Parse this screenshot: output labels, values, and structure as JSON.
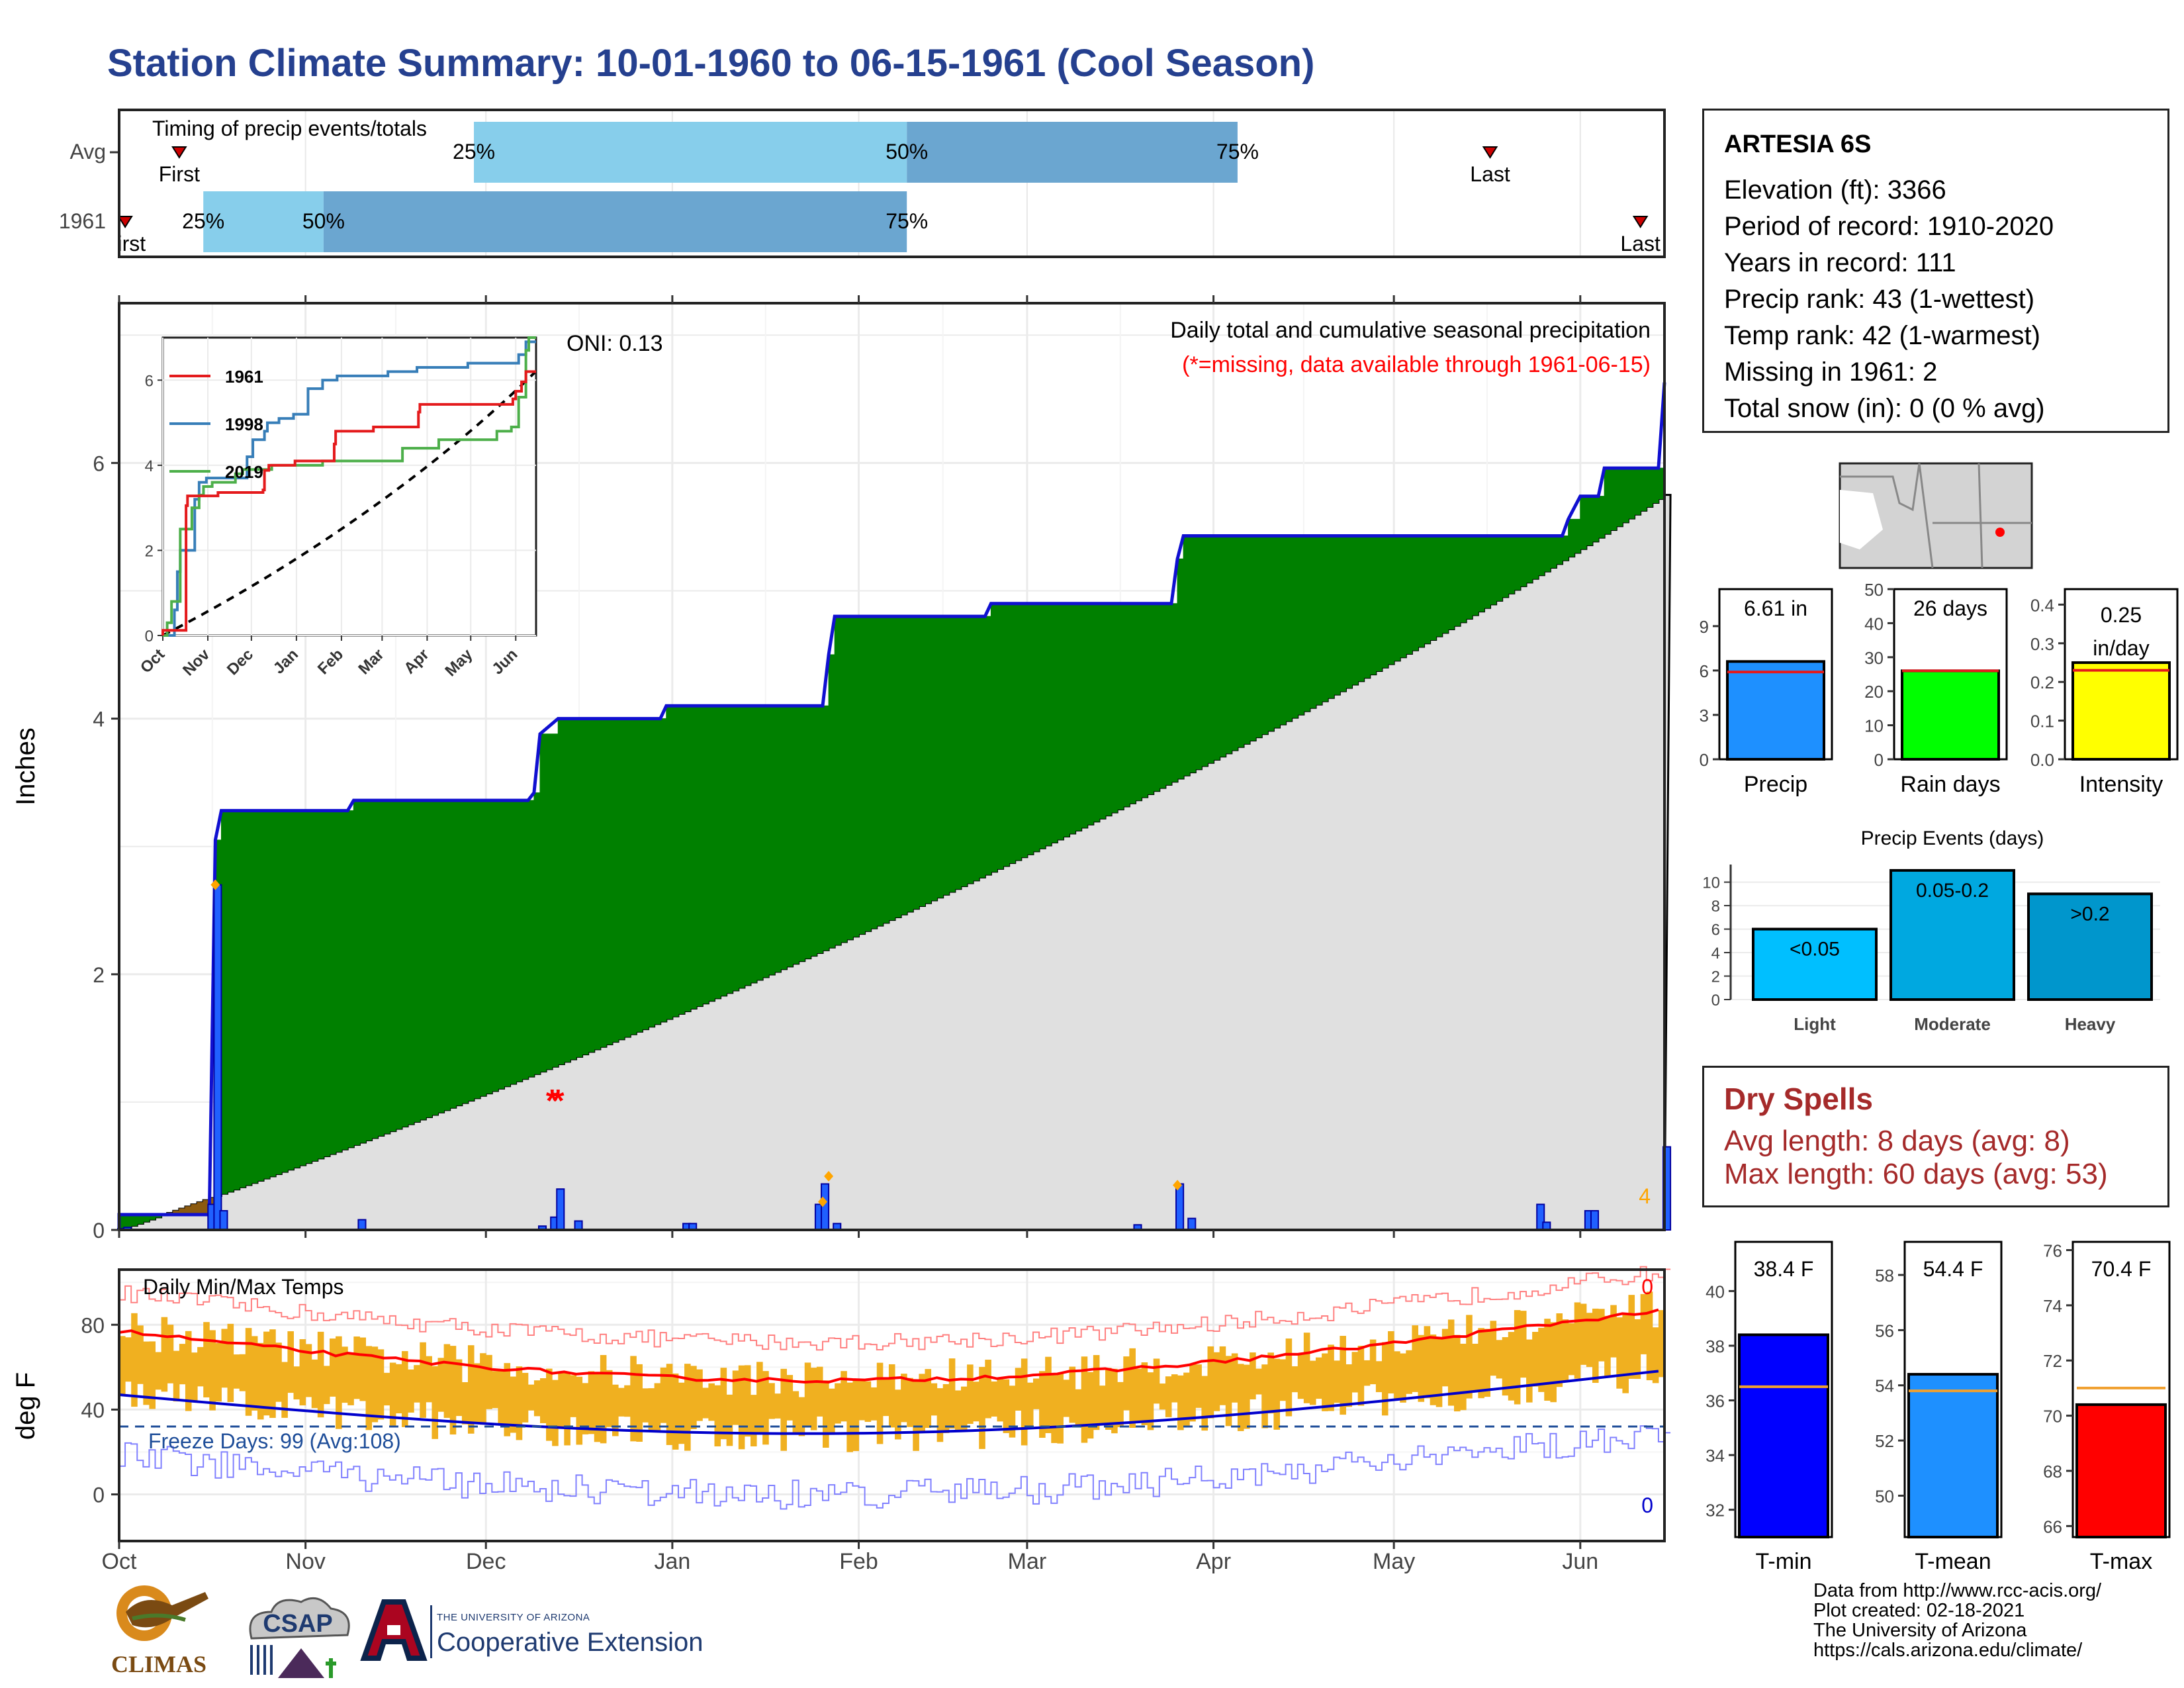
{
  "title": "Station Climate Summary: 10-01-1960 to 06-15-1961 (Cool Season)",
  "timing": {
    "title": "Timing of precip events/totals",
    "rows": [
      {
        "label": "Avg",
        "p25": "25%",
        "p50": "50%",
        "p75": "75%",
        "first": "First",
        "last": "Last"
      },
      {
        "label": "1961",
        "p25": "25%",
        "p50": "50%",
        "p75": "75%",
        "first": "First",
        "last": "Last"
      }
    ]
  },
  "main_panel": {
    "ylabel": "Inches",
    "oni": "ONI: 0.13",
    "caption": "Daily total and cumulative seasonal precipitation",
    "missing_note": "(*=missing, data available through 1961-06-15)",
    "missing_count": "4",
    "colors": {
      "observed": "#008000",
      "normal": "#e0e0e0",
      "outline": "#1010d0",
      "deficit": "#8b5a10",
      "bars": "#2060ff",
      "missing": "#ff0000",
      "flag": "#ffa500"
    }
  },
  "inset": {
    "legend": [
      "1961",
      "1998",
      "2019"
    ],
    "colors": [
      "#e41a1c",
      "#377eb8",
      "#4daf4a"
    ],
    "x_ticks": [
      "Oct",
      "Nov",
      "Dec",
      "Jan",
      "Feb",
      "Mar",
      "Apr",
      "May",
      "Jun"
    ],
    "y_ticks": [
      "0",
      "2",
      "4",
      "6"
    ]
  },
  "temp_panel": {
    "ylabel": "deg F",
    "title": "Daily Min/Max Temps",
    "freeze": "Freeze Days: 99 (Avg:108)",
    "count_top": "0",
    "count_bottom": "0",
    "y_ticks": [
      "0",
      "40",
      "80"
    ]
  },
  "x_ticks": [
    "Oct",
    "Nov",
    "Dec",
    "Jan",
    "Feb",
    "Mar",
    "Apr",
    "May",
    "Jun"
  ],
  "station": {
    "name": "ARTESIA 6S",
    "rows": [
      "Elevation (ft): 3366",
      "Period of record: 1910-2020",
      "Years in record: 111",
      "Precip rank: 43 (1-wettest)",
      "Temp rank: 42 (1-warmest)",
      "Missing in 1961: 2",
      "Total snow (in): 0 (0 % avg)"
    ]
  },
  "precip_bars": [
    {
      "label": "Precip",
      "value_text": "6.61 in",
      "value": 6.61,
      "avg": 5.9,
      "ymax": 11.5,
      "ticks": [
        "0",
        "3",
        "6",
        "9"
      ],
      "color": "#1e90ff"
    },
    {
      "label": "Rain days",
      "value_text": "26 days",
      "value": 26,
      "avg": 26,
      "ymax": 50,
      "ticks": [
        "0",
        "10",
        "20",
        "30",
        "40",
        "50"
      ],
      "color": "#00ff00"
    },
    {
      "label": "Intensity",
      "value_text": "0.25 in/day",
      "value": 0.25,
      "avg": 0.23,
      "ymax": 0.44,
      "ticks": [
        "0.0",
        "0.1",
        "0.2",
        "0.3",
        "0.4"
      ],
      "color": "#ffff00"
    }
  ],
  "events": {
    "title": "Precip Events (days)",
    "ticks": [
      "0",
      "2",
      "4",
      "6",
      "8",
      "10"
    ],
    "bars": [
      {
        "label": "Light",
        "text": "<0.05",
        "value": 6,
        "color": "#00bfff"
      },
      {
        "label": "Moderate",
        "text": "0.05-0.2",
        "value": 11,
        "color": "#00a8e0"
      },
      {
        "label": "Heavy",
        "text": ">0.2",
        "value": 9,
        "color": "#0096cc"
      }
    ]
  },
  "dry": {
    "title": "Dry Spells",
    "avg": "Avg length: 8 days (avg: 8)",
    "max": "Max length: 60 days (avg: 53)"
  },
  "temp_bars": [
    {
      "label": "T-min",
      "value_text": "38.4 F",
      "value": 38.4,
      "avg": 36.5,
      "ymin": 31,
      "ymax": 41.8,
      "ticks": [
        "32",
        "34",
        "36",
        "38",
        "40"
      ],
      "color": "#0000ff"
    },
    {
      "label": "T-mean",
      "value_text": "54.4 F",
      "value": 54.4,
      "avg": 53.8,
      "ymin": 48.5,
      "ymax": 59.2,
      "ticks": [
        "50",
        "52",
        "54",
        "56",
        "58"
      ],
      "color": "#1e90ff"
    },
    {
      "label": "T-max",
      "value_text": "70.4 F",
      "value": 70.4,
      "avg": 71.0,
      "ymin": 65.6,
      "ymax": 76.3,
      "ticks": [
        "66",
        "68",
        "70",
        "72",
        "74",
        "76"
      ],
      "color": "#ff0000"
    }
  ],
  "credits": [
    "Data from http://www.rcc-acis.org/",
    "Plot created: 02-18-2021",
    "The University of Arizona",
    "https://cals.arizona.edu/climate/"
  ],
  "logos": {
    "climas": "CLIMAS",
    "csap": "CSAP",
    "coop_small": "THE UNIVERSITY OF ARIZONA",
    "coop_big": "Cooperative Extension"
  }
}
